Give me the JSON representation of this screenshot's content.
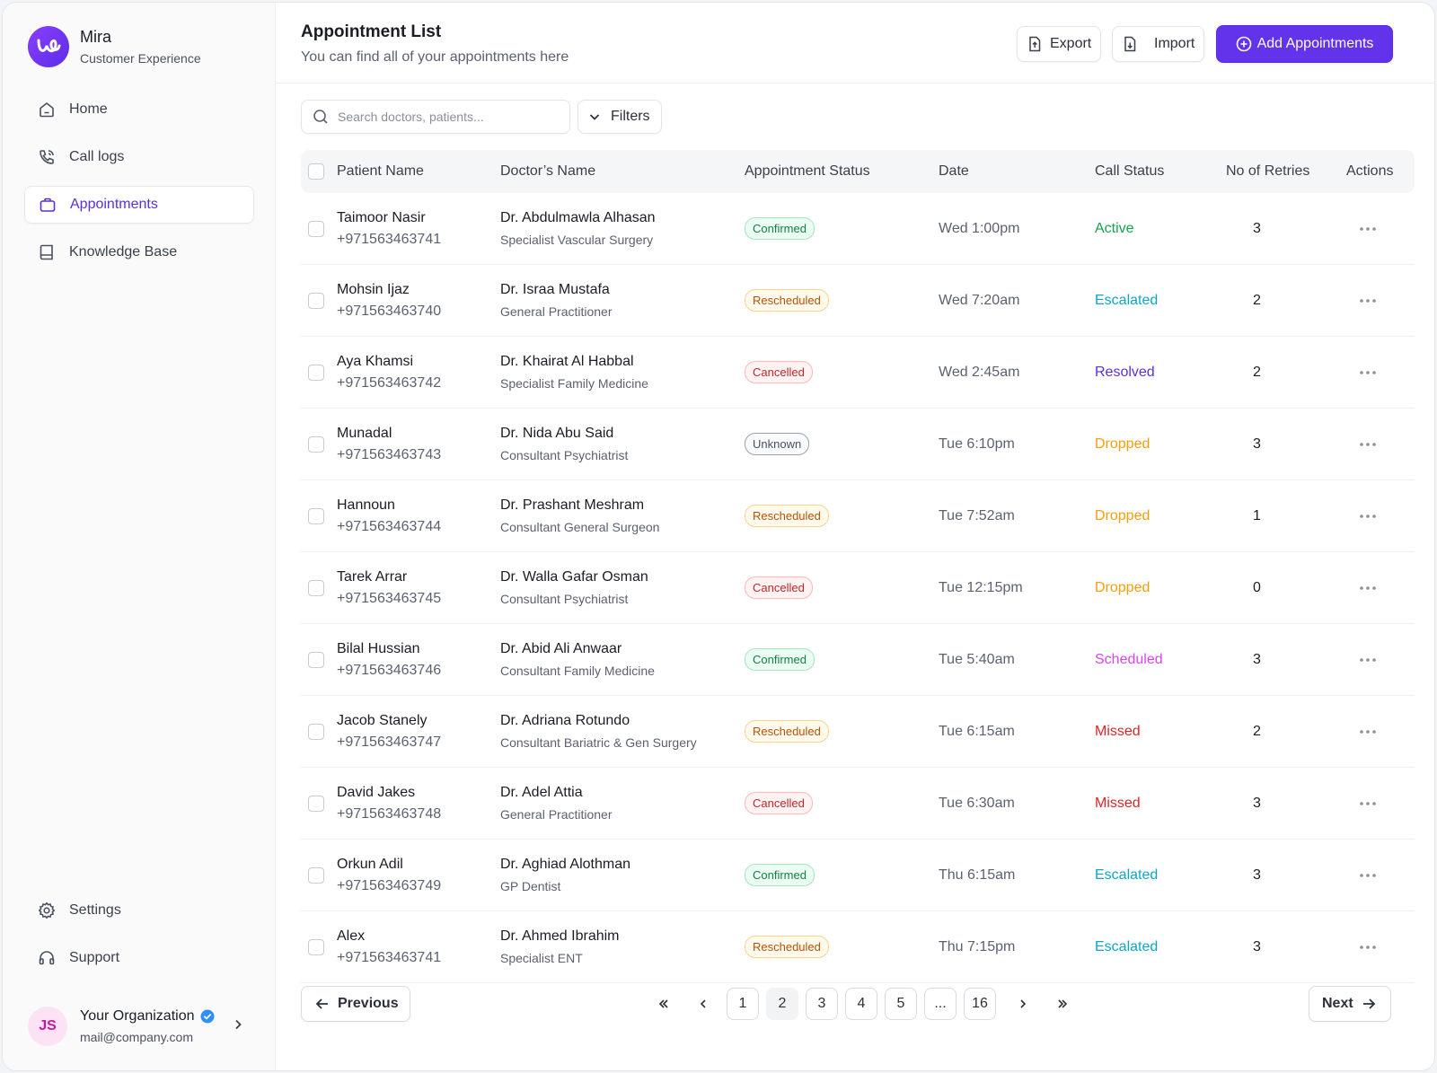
{
  "brand": {
    "name": "Mira",
    "subtitle": "Customer Experience"
  },
  "sidebar": {
    "items": [
      {
        "label": "Home",
        "icon": "home-icon"
      },
      {
        "label": "Call logs",
        "icon": "phone-icon"
      },
      {
        "label": "Appointments",
        "icon": "briefcase-icon",
        "active": true
      },
      {
        "label": "Knowledge Base",
        "icon": "book-icon"
      }
    ],
    "bottom_items": [
      {
        "label": "Settings",
        "icon": "gear-icon"
      },
      {
        "label": "Support",
        "icon": "headset-icon"
      }
    ],
    "profile": {
      "initials": "JS",
      "org_name": "Your Organization",
      "email": "mail@company.com"
    }
  },
  "header": {
    "title": "Appointment List",
    "subtitle": "You can find all of your appointments here",
    "export_label": "Export",
    "import_label": "Import",
    "add_label": "Add Appointments"
  },
  "search": {
    "placeholder": "Search doctors, patients...",
    "value": ""
  },
  "filters_label": "Filters",
  "table": {
    "columns": [
      "Patient Name",
      "Doctor’s Name",
      "Appointment Status",
      "Date",
      "Call Status",
      "No of Retries",
      "Actions"
    ],
    "rows": [
      {
        "patient": "Taimoor Nasir",
        "phone": "+971563463741",
        "doctor": "Dr. Abdulmawla Alhasan",
        "specialty": "Specialist Vascular Surgery",
        "status": "Confirmed",
        "date": "Wed 1:00pm",
        "call_status": "Active",
        "retries": "3"
      },
      {
        "patient": "Mohsin Ijaz",
        "phone": "+971563463740",
        "doctor": "Dr. Israa Mustafa",
        "specialty": "General Practitioner",
        "status": "Rescheduled",
        "date": "Wed 7:20am",
        "call_status": "Escalated",
        "retries": "2"
      },
      {
        "patient": "Aya Khamsi",
        "phone": "+971563463742",
        "doctor": "Dr. Khairat Al Habbal",
        "specialty": "Specialist Family Medicine",
        "status": "Cancelled",
        "date": "Wed 2:45am",
        "call_status": "Resolved",
        "retries": "2"
      },
      {
        "patient": "Munadal",
        "phone": "+971563463743",
        "doctor": "Dr. Nida Abu Said",
        "specialty": "Consultant Psychiatrist",
        "status": "Unknown",
        "date": "Tue 6:10pm",
        "call_status": "Dropped",
        "retries": "3"
      },
      {
        "patient": "Hannoun",
        "phone": "+971563463744",
        "doctor": "Dr. Prashant Meshram",
        "specialty": "Consultant General Surgeon",
        "status": "Rescheduled",
        "date": "Tue 7:52am",
        "call_status": "Dropped",
        "retries": "1"
      },
      {
        "patient": "Tarek Arrar",
        "phone": "+971563463745",
        "doctor": "Dr. Walla Gafar Osman",
        "specialty": "Consultant Psychiatrist",
        "status": "Cancelled",
        "date": "Tue 12:15pm",
        "call_status": "Dropped",
        "retries": "0"
      },
      {
        "patient": "Bilal Hussian",
        "phone": "+971563463746",
        "doctor": "Dr. Abid Ali Anwaar",
        "specialty": "Consultant Family Medicine",
        "status": "Confirmed",
        "date": "Tue 5:40am",
        "call_status": "Scheduled",
        "retries": "3"
      },
      {
        "patient": "Jacob Stanely",
        "phone": "+971563463747",
        "doctor": "Dr. Adriana Rotundo",
        "specialty": "Consultant Bariatric & Gen Surgery",
        "status": "Rescheduled",
        "date": "Tue 6:15am",
        "call_status": "Missed",
        "retries": "2"
      },
      {
        "patient": "David Jakes",
        "phone": "+971563463748",
        "doctor": "Dr. Adel Attia",
        "specialty": "General Practitioner",
        "status": "Cancelled",
        "date": "Tue 6:30am",
        "call_status": "Missed",
        "retries": "3"
      },
      {
        "patient": "Orkun Adil",
        "phone": "+971563463749",
        "doctor": "Dr. Aghiad Alothman",
        "specialty": "GP Dentist",
        "status": "Confirmed",
        "date": "Thu 6:15am",
        "call_status": "Escalated",
        "retries": "3"
      },
      {
        "patient": "Alex",
        "phone": "+971563463741",
        "doctor": "Dr. Ahmed Ibrahim",
        "specialty": "Specialist ENT",
        "status": "Rescheduled",
        "date": "Thu 7:15pm",
        "call_status": "Escalated",
        "retries": "3"
      }
    ]
  },
  "call_status_colors": {
    "Active": "#16a34a",
    "Escalated": "#0ea5c6",
    "Resolved": "#5b2ee0",
    "Dropped": "#f59e0b",
    "Scheduled": "#d946ef",
    "Missed": "#dc2626"
  },
  "accent_color": "#6233ea",
  "pagination": {
    "previous_label": "Previous",
    "next_label": "Next",
    "pages": [
      "1",
      "2",
      "3",
      "4",
      "5",
      "...",
      "16"
    ],
    "current": "2"
  }
}
